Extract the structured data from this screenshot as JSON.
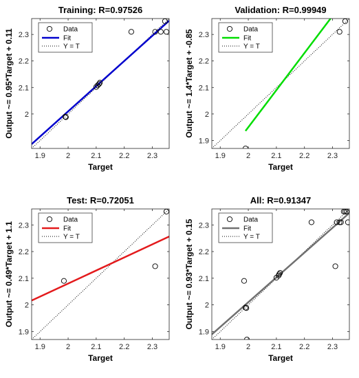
{
  "chart_data": [
    {
      "type": "scatter",
      "title": "Training: R=0.97526",
      "xlabel": "Target",
      "ylabel": "Output ~= 0.95*Target + 0.11",
      "xlim": [
        1.87,
        2.36
      ],
      "ylim": [
        1.87,
        2.36
      ],
      "xticks": [
        "1.9",
        "2",
        "2.1",
        "2.2",
        "2.3"
      ],
      "yticks": [
        "2",
        "2.1",
        "2.2",
        "2.3"
      ],
      "fit_color": "#0000cd",
      "fit_line": {
        "slope": 0.95,
        "intercept": 0.11
      },
      "legend": {
        "placement": "top-left",
        "entries": [
          "Data",
          "Fit",
          "Y = T"
        ]
      },
      "points": [
        {
          "x": 1.99,
          "y": 1.99
        },
        {
          "x": 1.992,
          "y": 1.988
        },
        {
          "x": 2.1,
          "y": 2.102
        },
        {
          "x": 2.105,
          "y": 2.108
        },
        {
          "x": 2.11,
          "y": 2.113
        },
        {
          "x": 2.113,
          "y": 2.118
        },
        {
          "x": 2.225,
          "y": 2.31
        },
        {
          "x": 2.31,
          "y": 2.31
        },
        {
          "x": 2.33,
          "y": 2.31
        },
        {
          "x": 2.345,
          "y": 2.35
        },
        {
          "x": 2.35,
          "y": 2.31
        }
      ]
    },
    {
      "type": "scatter",
      "title": "Validation: R=0.99949",
      "xlabel": "Target",
      "ylabel": "Output ~= 1.4*Target + -0.85",
      "xlim": [
        1.87,
        2.36
      ],
      "ylim": [
        1.87,
        2.36
      ],
      "xticks": [
        "1.9",
        "2",
        "2.1",
        "2.2",
        "2.3"
      ],
      "yticks": [
        "1.9",
        "2",
        "2.1",
        "2.2",
        "2.3"
      ],
      "fit_color": "#00dd00",
      "fit_line": {
        "slope": 1.4,
        "intercept": -0.85,
        "x_range": [
          1.99,
          2.345
        ]
      },
      "legend": {
        "placement": "top-left",
        "entries": [
          "Data",
          "Fit",
          "Y = T"
        ]
      },
      "points": [
        {
          "x": 1.99,
          "y": 1.87
        },
        {
          "x": 2.325,
          "y": 2.31
        },
        {
          "x": 2.345,
          "y": 2.35
        }
      ]
    },
    {
      "type": "scatter",
      "title": "Test: R=0.72051",
      "xlabel": "Target",
      "ylabel": "Output ~= 0.49*Target + 1.1",
      "xlim": [
        1.87,
        2.36
      ],
      "ylim": [
        1.87,
        2.36
      ],
      "xticks": [
        "1.9",
        "2",
        "2.1",
        "2.2",
        "2.3"
      ],
      "yticks": [
        "1.9",
        "2",
        "2.1",
        "2.2",
        "2.3"
      ],
      "fit_color": "#e31a1c",
      "fit_line": {
        "slope": 0.49,
        "intercept": 1.1
      },
      "legend": {
        "placement": "top-left",
        "entries": [
          "Data",
          "Fit",
          "Y = T"
        ]
      },
      "points": [
        {
          "x": 1.985,
          "y": 2.09
        },
        {
          "x": 2.31,
          "y": 2.145
        },
        {
          "x": 2.35,
          "y": 2.35
        }
      ]
    },
    {
      "type": "scatter",
      "title": "All: R=0.91347",
      "xlabel": "Target",
      "ylabel": "Output ~= 0.93*Target + 0.15",
      "xlim": [
        1.87,
        2.36
      ],
      "ylim": [
        1.87,
        2.36
      ],
      "xticks": [
        "1.9",
        "2",
        "2.1",
        "2.2",
        "2.3"
      ],
      "yticks": [
        "1.9",
        "2",
        "2.1",
        "2.2",
        "2.3"
      ],
      "fit_color": "#707070",
      "fit_line": {
        "slope": 0.93,
        "intercept": 0.15
      },
      "legend": {
        "placement": "top-left",
        "entries": [
          "Data",
          "Fit",
          "Y = T"
        ]
      },
      "points": [
        {
          "x": 1.985,
          "y": 2.09
        },
        {
          "x": 1.99,
          "y": 1.99
        },
        {
          "x": 1.993,
          "y": 1.988
        },
        {
          "x": 1.995,
          "y": 1.87
        },
        {
          "x": 2.1,
          "y": 2.102
        },
        {
          "x": 2.108,
          "y": 2.11
        },
        {
          "x": 2.11,
          "y": 2.115
        },
        {
          "x": 2.113,
          "y": 2.12
        },
        {
          "x": 2.225,
          "y": 2.31
        },
        {
          "x": 2.31,
          "y": 2.145
        },
        {
          "x": 2.315,
          "y": 2.31
        },
        {
          "x": 2.325,
          "y": 2.31
        },
        {
          "x": 2.33,
          "y": 2.31
        },
        {
          "x": 2.34,
          "y": 2.35
        },
        {
          "x": 2.345,
          "y": 2.35
        },
        {
          "x": 2.35,
          "y": 2.35
        },
        {
          "x": 2.355,
          "y": 2.31
        }
      ]
    }
  ]
}
